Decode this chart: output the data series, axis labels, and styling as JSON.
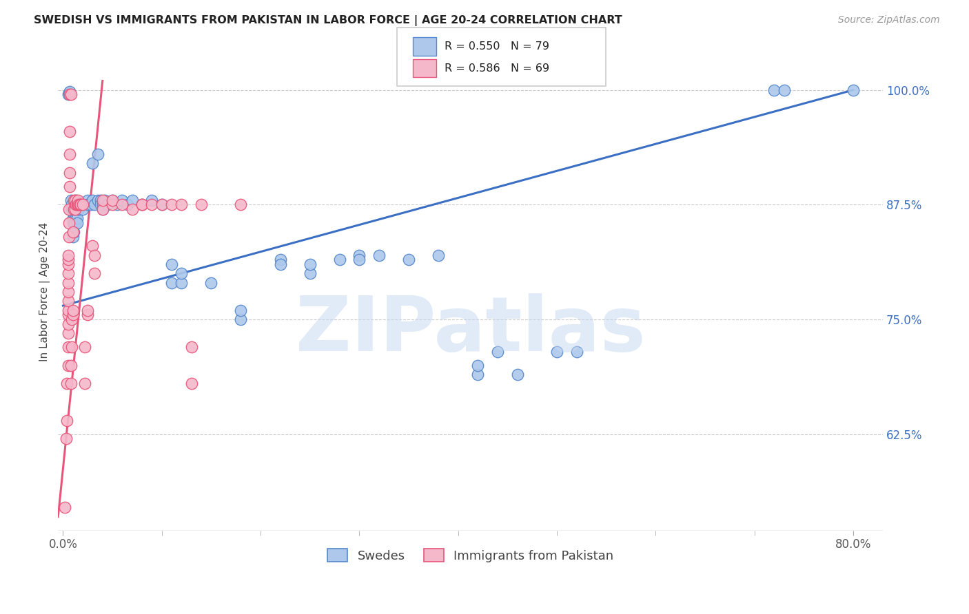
{
  "title": "SWEDISH VS IMMIGRANTS FROM PAKISTAN IN LABOR FORCE | AGE 20-24 CORRELATION CHART",
  "source": "Source: ZipAtlas.com",
  "ylabel": "In Labor Force | Age 20-24",
  "x_tick_labels_edge": [
    "0.0%",
    "80.0%"
  ],
  "x_tick_values_edge": [
    0.0,
    0.8
  ],
  "y_tick_labels": [
    "62.5%",
    "75.0%",
    "87.5%",
    "100.0%"
  ],
  "y_tick_values": [
    0.625,
    0.75,
    0.875,
    1.0
  ],
  "xlim": [
    -0.005,
    0.83
  ],
  "ylim": [
    0.52,
    1.04
  ],
  "blue_R": 0.55,
  "blue_N": 79,
  "pink_R": 0.586,
  "pink_N": 69,
  "blue_color": "#adc8ea",
  "pink_color": "#f5b8ca",
  "blue_edge_color": "#5588cc",
  "pink_edge_color": "#e8557a",
  "blue_line_color": "#3a6fc4",
  "pink_line_color": "#e8557a",
  "legend_label_blue": "Swedes",
  "legend_label_pink": "Immigrants from Pakistan",
  "watermark": "ZIPatlas",
  "blue_line_x": [
    0.0,
    0.8
  ],
  "blue_line_y": [
    0.765,
    1.0
  ],
  "pink_line_x": [
    -0.005,
    0.04
  ],
  "pink_line_y": [
    0.535,
    1.01
  ],
  "blue_points": [
    [
      0.005,
      0.995
    ],
    [
      0.006,
      0.997
    ],
    [
      0.007,
      0.998
    ],
    [
      0.008,
      0.88
    ],
    [
      0.009,
      0.875
    ],
    [
      0.009,
      0.87
    ],
    [
      0.01,
      0.86
    ],
    [
      0.01,
      0.855
    ],
    [
      0.01,
      0.845
    ],
    [
      0.01,
      0.84
    ],
    [
      0.011,
      0.865
    ],
    [
      0.011,
      0.855
    ],
    [
      0.011,
      0.845
    ],
    [
      0.012,
      0.875
    ],
    [
      0.012,
      0.87
    ],
    [
      0.012,
      0.865
    ],
    [
      0.012,
      0.855
    ],
    [
      0.013,
      0.88
    ],
    [
      0.013,
      0.875
    ],
    [
      0.013,
      0.87
    ],
    [
      0.013,
      0.86
    ],
    [
      0.014,
      0.875
    ],
    [
      0.014,
      0.87
    ],
    [
      0.014,
      0.86
    ],
    [
      0.014,
      0.855
    ],
    [
      0.015,
      0.875
    ],
    [
      0.015,
      0.87
    ],
    [
      0.016,
      0.875
    ],
    [
      0.016,
      0.87
    ],
    [
      0.02,
      0.875
    ],
    [
      0.02,
      0.87
    ],
    [
      0.025,
      0.88
    ],
    [
      0.025,
      0.875
    ],
    [
      0.028,
      0.875
    ],
    [
      0.03,
      0.92
    ],
    [
      0.03,
      0.88
    ],
    [
      0.032,
      0.875
    ],
    [
      0.035,
      0.93
    ],
    [
      0.035,
      0.88
    ],
    [
      0.038,
      0.88
    ],
    [
      0.038,
      0.875
    ],
    [
      0.04,
      0.875
    ],
    [
      0.04,
      0.87
    ],
    [
      0.042,
      0.88
    ],
    [
      0.045,
      0.875
    ],
    [
      0.05,
      0.88
    ],
    [
      0.055,
      0.875
    ],
    [
      0.06,
      0.88
    ],
    [
      0.065,
      0.875
    ],
    [
      0.07,
      0.88
    ],
    [
      0.08,
      0.875
    ],
    [
      0.09,
      0.88
    ],
    [
      0.1,
      0.875
    ],
    [
      0.11,
      0.79
    ],
    [
      0.11,
      0.81
    ],
    [
      0.12,
      0.79
    ],
    [
      0.12,
      0.8
    ],
    [
      0.15,
      0.79
    ],
    [
      0.18,
      0.75
    ],
    [
      0.18,
      0.76
    ],
    [
      0.22,
      0.815
    ],
    [
      0.22,
      0.81
    ],
    [
      0.25,
      0.8
    ],
    [
      0.25,
      0.81
    ],
    [
      0.28,
      0.815
    ],
    [
      0.3,
      0.82
    ],
    [
      0.3,
      0.815
    ],
    [
      0.32,
      0.82
    ],
    [
      0.35,
      0.815
    ],
    [
      0.38,
      0.82
    ],
    [
      0.42,
      0.69
    ],
    [
      0.42,
      0.7
    ],
    [
      0.44,
      0.715
    ],
    [
      0.46,
      0.69
    ],
    [
      0.5,
      0.715
    ],
    [
      0.52,
      0.715
    ],
    [
      0.72,
      1.0
    ],
    [
      0.73,
      1.0
    ],
    [
      0.8,
      1.0
    ]
  ],
  "pink_points": [
    [
      0.002,
      0.545
    ],
    [
      0.003,
      0.62
    ],
    [
      0.004,
      0.64
    ],
    [
      0.004,
      0.68
    ],
    [
      0.005,
      0.7
    ],
    [
      0.005,
      0.72
    ],
    [
      0.005,
      0.735
    ],
    [
      0.005,
      0.745
    ],
    [
      0.005,
      0.755
    ],
    [
      0.005,
      0.76
    ],
    [
      0.005,
      0.77
    ],
    [
      0.005,
      0.78
    ],
    [
      0.005,
      0.79
    ],
    [
      0.005,
      0.8
    ],
    [
      0.005,
      0.81
    ],
    [
      0.005,
      0.815
    ],
    [
      0.005,
      0.82
    ],
    [
      0.006,
      0.84
    ],
    [
      0.006,
      0.855
    ],
    [
      0.006,
      0.87
    ],
    [
      0.007,
      0.895
    ],
    [
      0.007,
      0.91
    ],
    [
      0.007,
      0.93
    ],
    [
      0.007,
      0.955
    ],
    [
      0.007,
      0.995
    ],
    [
      0.008,
      0.995
    ],
    [
      0.008,
      0.68
    ],
    [
      0.008,
      0.7
    ],
    [
      0.009,
      0.72
    ],
    [
      0.009,
      0.75
    ],
    [
      0.01,
      0.755
    ],
    [
      0.01,
      0.76
    ],
    [
      0.01,
      0.845
    ],
    [
      0.011,
      0.87
    ],
    [
      0.011,
      0.88
    ],
    [
      0.012,
      0.875
    ],
    [
      0.012,
      0.88
    ],
    [
      0.012,
      0.87
    ],
    [
      0.013,
      0.875
    ],
    [
      0.014,
      0.875
    ],
    [
      0.015,
      0.875
    ],
    [
      0.015,
      0.88
    ],
    [
      0.016,
      0.875
    ],
    [
      0.017,
      0.875
    ],
    [
      0.018,
      0.875
    ],
    [
      0.02,
      0.875
    ],
    [
      0.022,
      0.68
    ],
    [
      0.022,
      0.72
    ],
    [
      0.025,
      0.755
    ],
    [
      0.025,
      0.76
    ],
    [
      0.03,
      0.83
    ],
    [
      0.032,
      0.8
    ],
    [
      0.032,
      0.82
    ],
    [
      0.04,
      0.87
    ],
    [
      0.04,
      0.88
    ],
    [
      0.05,
      0.875
    ],
    [
      0.05,
      0.88
    ],
    [
      0.06,
      0.875
    ],
    [
      0.07,
      0.87
    ],
    [
      0.08,
      0.875
    ],
    [
      0.08,
      0.875
    ],
    [
      0.09,
      0.875
    ],
    [
      0.1,
      0.875
    ],
    [
      0.11,
      0.875
    ],
    [
      0.12,
      0.875
    ],
    [
      0.13,
      0.68
    ],
    [
      0.13,
      0.72
    ],
    [
      0.14,
      0.875
    ],
    [
      0.18,
      0.875
    ]
  ]
}
